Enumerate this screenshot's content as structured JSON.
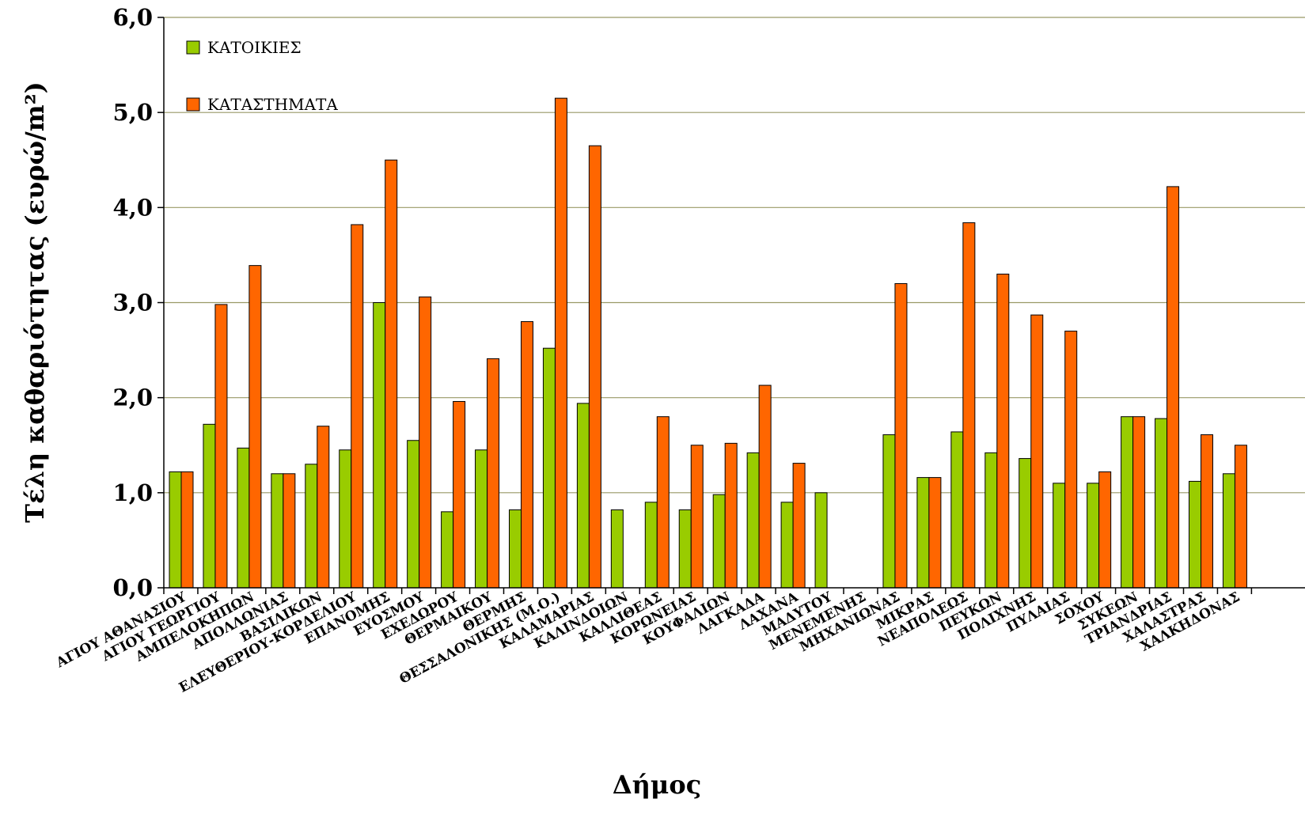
{
  "chart_data": {
    "type": "bar",
    "title": "",
    "xlabel": "Δήμος",
    "ylabel": "Τέλη καθαριότητας (ευρώ/m²)",
    "ylim": [
      0,
      6
    ],
    "yticks": [
      "0,0",
      "1,0",
      "2,0",
      "3,0",
      "4,0",
      "5,0",
      "6,0"
    ],
    "grid": true,
    "legend_position": "top-left",
    "categories": [
      "ΑΓΙΟΥ ΑΘΑΝΑΣΙΟΥ",
      "ΑΓΙΟΥ ΓΕΩΡΓΙΟΥ",
      "ΑΜΠΕΛΟΚΗΠΩΝ",
      "ΑΠΟΛΛΩΝΙΑΣ",
      "ΒΑΣΙΛΙΚΩΝ",
      "ΕΛΕΥΘΕΡΙΟΥ-ΚΟΡΔΕΛΙΟΥ",
      "ΕΠΑΝΟΜΗΣ",
      "ΕΥΟΣΜΟΥ",
      "ΕΧΕΔΩΡΟΥ",
      "ΘΕΡΜΑΙΚΟΥ",
      "ΘΕΡΜΗΣ",
      "ΘΕΣΣΑΛΟΝΙΚΗΣ (Μ.Ο.)",
      "ΚΑΛΑΜΑΡΙΑΣ",
      "ΚΑΛΙΝΔΟΙΩΝ",
      "ΚΑΛΛΙΘΕΑΣ",
      "ΚΟΡΩΝΕΙΑΣ",
      "ΚΟΥΦΑΛΙΩΝ",
      "ΛΑΓΚΑΔΑ",
      "ΛΑΧΑΝΑ",
      "ΜΑΔΥΤΟΥ",
      "ΜΕΝΕΜΕΝΗΣ",
      "ΜΗΧΑΝΙΩΝΑΣ",
      "ΜΙΚΡΑΣ",
      "ΝΕΑΠΟΛΕΩΣ",
      "ΠΕΥΚΩΝ",
      "ΠΟΛΙΧΝΗΣ",
      "ΠΥΛΑΙΑΣ",
      "ΣΟΧΟΥ",
      "ΣΥΚΕΩΝ",
      "ΤΡΙΑΝΔΡΙΑΣ",
      "ΧΑΛΑΣΤΡΑΣ",
      "ΧΑΛΚΗΔΟΝΑΣ"
    ],
    "series": [
      {
        "name": "ΚΑΤΟΙΚΙΕΣ",
        "color": "#99CC00",
        "values": [
          1.22,
          1.72,
          1.47,
          1.2,
          1.3,
          1.45,
          3.0,
          1.55,
          0.8,
          1.45,
          0.82,
          2.52,
          1.94,
          0.82,
          0.9,
          0.82,
          0.98,
          1.42,
          0.9,
          1.0,
          null,
          1.61,
          1.16,
          1.64,
          1.42,
          1.36,
          1.1,
          1.1,
          1.8,
          1.78,
          1.12,
          1.2
        ]
      },
      {
        "name": "ΚΑΤΑΣΤΗΜΑΤΑ",
        "color": "#FF6600",
        "values": [
          1.22,
          2.98,
          3.39,
          1.2,
          1.7,
          3.82,
          4.5,
          3.06,
          1.96,
          2.41,
          2.8,
          5.15,
          4.65,
          null,
          1.8,
          1.5,
          1.52,
          2.13,
          1.31,
          null,
          null,
          3.2,
          1.16,
          3.84,
          3.3,
          2.87,
          2.7,
          1.22,
          1.8,
          4.22,
          1.61,
          1.5
        ]
      }
    ]
  }
}
